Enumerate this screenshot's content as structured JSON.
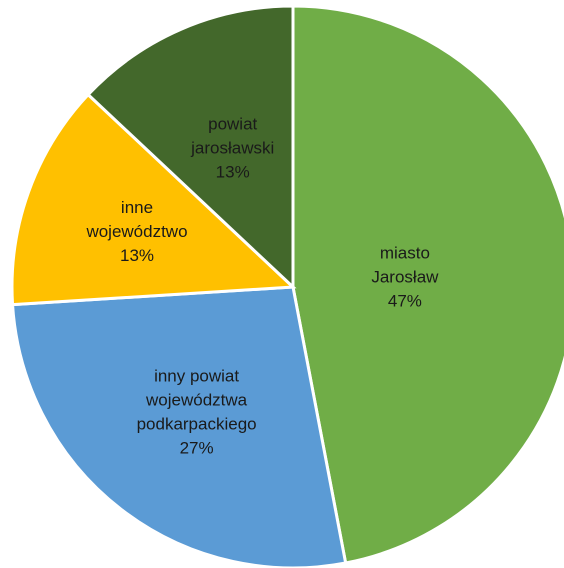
{
  "chart_data": {
    "type": "pie",
    "title": "",
    "start_angle_deg": 0,
    "direction": "clockwise",
    "slices": [
      {
        "lines": [
          "miasto",
          "Jarosław"
        ],
        "percent_label": "47%",
        "value": 47,
        "color": "#70ad47"
      },
      {
        "lines": [
          "inny powiat",
          "województwa",
          "podkarpackiego"
        ],
        "percent_label": "27%",
        "value": 27,
        "color": "#5b9bd5"
      },
      {
        "lines": [
          "inne",
          "województwo"
        ],
        "percent_label": "13%",
        "value": 13,
        "color": "#ffc000"
      },
      {
        "lines": [
          "powiat",
          "jarosławski"
        ],
        "percent_label": "13%",
        "value": 13,
        "color": "#43682b"
      }
    ]
  }
}
